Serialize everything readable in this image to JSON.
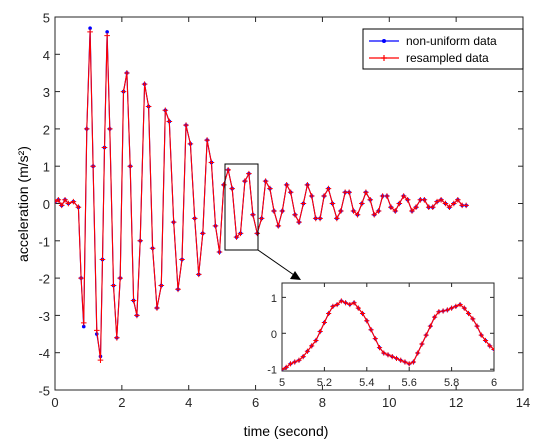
{
  "chart_data": [
    {
      "type": "line",
      "xlabel": "time (second)",
      "ylabel": "acceleration (m/s²)",
      "xlim": [
        0,
        14
      ],
      "ylim": [
        -5,
        5
      ],
      "x_ticks": [
        "0",
        "2",
        "4",
        "6",
        "8",
        "10",
        "12",
        "14"
      ],
      "y_ticks": [
        "-5",
        "-4",
        "-3",
        "-2",
        "-1",
        "0",
        "1",
        "2",
        "3",
        "4",
        "5"
      ],
      "legend_position": "top-right",
      "grid": false,
      "series": [
        {
          "name": "non-uniform data",
          "color": "#0000ff",
          "marker": "dot",
          "x": [
            0.0,
            0.1,
            0.2,
            0.3,
            0.4,
            0.55,
            0.7,
            0.78,
            0.86,
            0.95,
            1.05,
            1.14,
            1.25,
            1.36,
            1.42,
            1.48,
            1.56,
            1.64,
            1.75,
            1.85,
            1.95,
            2.05,
            2.15,
            2.25,
            2.35,
            2.45,
            2.55,
            2.68,
            2.8,
            2.92,
            3.05,
            3.18,
            3.3,
            3.42,
            3.55,
            3.68,
            3.8,
            3.92,
            4.05,
            4.18,
            4.3,
            4.42,
            4.55,
            4.68,
            4.8,
            4.92,
            5.05,
            5.18,
            5.3,
            5.43,
            5.55,
            5.68,
            5.8,
            5.92,
            6.05,
            6.18,
            6.3,
            6.43,
            6.55,
            6.68,
            6.8,
            6.93,
            7.05,
            7.18,
            7.3,
            7.43,
            7.55,
            7.68,
            7.8,
            7.93,
            8.05,
            8.18,
            8.3,
            8.43,
            8.55,
            8.68,
            8.8,
            8.93,
            9.05,
            9.18,
            9.3,
            9.43,
            9.55,
            9.68,
            9.8,
            9.93,
            10.05,
            10.18,
            10.3,
            10.43,
            10.55,
            10.68,
            10.8,
            10.93,
            11.05,
            11.18,
            11.3,
            11.43,
            11.55,
            11.68,
            11.8,
            11.93,
            12.05,
            12.18,
            12.3
          ],
          "y": [
            0.05,
            0.1,
            -0.05,
            0.1,
            0.0,
            0.05,
            -0.1,
            -2.0,
            -3.3,
            2.0,
            4.7,
            1.0,
            -3.5,
            -4.1,
            -1.5,
            1.5,
            4.6,
            2.0,
            -2.2,
            -3.6,
            -2.0,
            3.0,
            3.5,
            1.0,
            -2.6,
            -3.0,
            -1.0,
            3.2,
            2.6,
            -1.2,
            -2.8,
            -2.2,
            2.5,
            2.2,
            -0.5,
            -2.3,
            -1.5,
            2.1,
            1.6,
            -0.4,
            -1.9,
            -0.8,
            1.7,
            1.1,
            -0.6,
            -1.3,
            0.5,
            0.9,
            0.4,
            -0.9,
            -0.8,
            0.6,
            0.8,
            -0.3,
            -0.8,
            -0.4,
            0.6,
            0.4,
            -0.2,
            -0.6,
            -0.2,
            0.5,
            0.3,
            -0.3,
            -0.5,
            0.0,
            0.5,
            0.2,
            -0.4,
            -0.4,
            0.2,
            0.4,
            0.0,
            -0.4,
            -0.2,
            0.3,
            0.3,
            -0.2,
            -0.3,
            0.0,
            0.3,
            0.1,
            -0.3,
            -0.2,
            0.2,
            0.2,
            -0.1,
            -0.2,
            0.0,
            0.2,
            0.1,
            -0.2,
            -0.1,
            0.1,
            0.1,
            -0.1,
            -0.1,
            0.05,
            0.1,
            0.0,
            -0.1,
            0.0,
            0.1,
            -0.05,
            -0.05
          ]
        },
        {
          "name": "resampled data",
          "color": "#ff0000",
          "marker": "plus",
          "x": [
            0.0,
            0.1,
            0.2,
            0.3,
            0.4,
            0.55,
            0.7,
            0.78,
            0.86,
            0.95,
            1.05,
            1.14,
            1.25,
            1.36,
            1.42,
            1.48,
            1.56,
            1.64,
            1.75,
            1.85,
            1.95,
            2.05,
            2.15,
            2.25,
            2.35,
            2.45,
            2.55,
            2.68,
            2.8,
            2.92,
            3.05,
            3.18,
            3.3,
            3.42,
            3.55,
            3.68,
            3.8,
            3.92,
            4.05,
            4.18,
            4.3,
            4.42,
            4.55,
            4.68,
            4.8,
            4.92,
            5.05,
            5.18,
            5.3,
            5.43,
            5.55,
            5.68,
            5.8,
            5.92,
            6.05,
            6.18,
            6.3,
            6.43,
            6.55,
            6.68,
            6.8,
            6.93,
            7.05,
            7.18,
            7.3,
            7.43,
            7.55,
            7.68,
            7.8,
            7.93,
            8.05,
            8.18,
            8.3,
            8.43,
            8.55,
            8.68,
            8.8,
            8.93,
            9.05,
            9.18,
            9.3,
            9.43,
            9.55,
            9.68,
            9.8,
            9.93,
            10.05,
            10.18,
            10.3,
            10.43,
            10.55,
            10.68,
            10.8,
            10.93,
            11.05,
            11.18,
            11.3,
            11.43,
            11.55,
            11.68,
            11.8,
            11.93,
            12.05,
            12.18,
            12.3
          ],
          "y": [
            0.05,
            0.1,
            -0.05,
            0.1,
            0.0,
            0.05,
            -0.1,
            -2.0,
            -3.2,
            2.0,
            4.6,
            1.0,
            -3.4,
            -4.2,
            -1.5,
            1.5,
            4.5,
            2.0,
            -2.2,
            -3.6,
            -2.0,
            3.0,
            3.5,
            1.0,
            -2.6,
            -3.0,
            -1.0,
            3.2,
            2.6,
            -1.2,
            -2.8,
            -2.2,
            2.5,
            2.2,
            -0.5,
            -2.3,
            -1.5,
            2.1,
            1.6,
            -0.4,
            -1.9,
            -0.8,
            1.7,
            1.1,
            -0.6,
            -1.3,
            0.5,
            0.9,
            0.4,
            -0.9,
            -0.8,
            0.6,
            0.8,
            -0.3,
            -0.8,
            -0.4,
            0.6,
            0.4,
            -0.2,
            -0.6,
            -0.2,
            0.5,
            0.3,
            -0.3,
            -0.5,
            0.0,
            0.5,
            0.2,
            -0.4,
            -0.4,
            0.2,
            0.4,
            0.0,
            -0.4,
            -0.2,
            0.3,
            0.3,
            -0.2,
            -0.3,
            0.0,
            0.3,
            0.1,
            -0.3,
            -0.2,
            0.2,
            0.2,
            -0.1,
            -0.2,
            0.0,
            0.2,
            0.1,
            -0.2,
            -0.1,
            0.1,
            0.1,
            -0.1,
            -0.1,
            0.05,
            0.1,
            0.0,
            -0.1,
            0.0,
            0.1,
            -0.05,
            -0.05
          ]
        }
      ],
      "zoom_region": {
        "x": [
          5.0,
          6.0
        ],
        "y": [
          -1.0,
          1.0
        ]
      }
    },
    {
      "type": "line",
      "xlim": [
        5,
        6
      ],
      "ylim": [
        -1.05,
        1.4
      ],
      "x_ticks": [
        "5",
        "5.2",
        "5.4",
        "5.6",
        "5.8",
        "6"
      ],
      "y_ticks": [
        "-1",
        "0",
        "1"
      ],
      "grid": false,
      "series": [
        {
          "name": "non-uniform data",
          "color": "#0000ff",
          "marker": "dot",
          "x": [
            5.0,
            5.02,
            5.04,
            5.06,
            5.08,
            5.1,
            5.12,
            5.14,
            5.16,
            5.18,
            5.2,
            5.22,
            5.24,
            5.26,
            5.28,
            5.3,
            5.32,
            5.34,
            5.36,
            5.38,
            5.4,
            5.42,
            5.44,
            5.46,
            5.48,
            5.5,
            5.52,
            5.54,
            5.56,
            5.58,
            5.6,
            5.62,
            5.64,
            5.66,
            5.68,
            5.7,
            5.72,
            5.74,
            5.76,
            5.78,
            5.8,
            5.82,
            5.84,
            5.86,
            5.88,
            5.9,
            5.92,
            5.94,
            5.96,
            5.98,
            6.0
          ],
          "y": [
            -1.0,
            -0.95,
            -0.85,
            -0.8,
            -0.75,
            -0.65,
            -0.5,
            -0.35,
            -0.2,
            0.05,
            0.3,
            0.55,
            0.75,
            0.8,
            0.9,
            0.85,
            0.8,
            0.85,
            0.7,
            0.55,
            0.35,
            0.1,
            -0.15,
            -0.4,
            -0.55,
            -0.6,
            -0.65,
            -0.7,
            -0.75,
            -0.8,
            -0.85,
            -0.8,
            -0.55,
            -0.3,
            -0.05,
            0.2,
            0.45,
            0.6,
            0.62,
            0.65,
            0.7,
            0.75,
            0.8,
            0.7,
            0.55,
            0.4,
            0.2,
            -0.05,
            -0.2,
            -0.35,
            -0.45
          ]
        },
        {
          "name": "resampled data",
          "color": "#ff0000",
          "marker": "plus",
          "x": [
            5.0,
            5.02,
            5.04,
            5.06,
            5.08,
            5.1,
            5.12,
            5.14,
            5.16,
            5.18,
            5.2,
            5.22,
            5.24,
            5.26,
            5.28,
            5.3,
            5.32,
            5.34,
            5.36,
            5.38,
            5.4,
            5.42,
            5.44,
            5.46,
            5.48,
            5.5,
            5.52,
            5.54,
            5.56,
            5.58,
            5.6,
            5.62,
            5.64,
            5.66,
            5.68,
            5.7,
            5.72,
            5.74,
            5.76,
            5.78,
            5.8,
            5.82,
            5.84,
            5.86,
            5.88,
            5.9,
            5.92,
            5.94,
            5.96,
            5.98,
            6.0
          ],
          "y": [
            -1.0,
            -0.95,
            -0.85,
            -0.8,
            -0.75,
            -0.65,
            -0.5,
            -0.35,
            -0.2,
            0.05,
            0.3,
            0.55,
            0.75,
            0.8,
            0.9,
            0.85,
            0.8,
            0.85,
            0.7,
            0.55,
            0.35,
            0.1,
            -0.15,
            -0.4,
            -0.55,
            -0.6,
            -0.65,
            -0.7,
            -0.75,
            -0.8,
            -0.85,
            -0.8,
            -0.55,
            -0.3,
            -0.05,
            0.2,
            0.45,
            0.6,
            0.62,
            0.65,
            0.7,
            0.75,
            0.8,
            0.7,
            0.55,
            0.4,
            0.2,
            -0.05,
            -0.2,
            -0.35,
            -0.45
          ]
        }
      ]
    }
  ]
}
